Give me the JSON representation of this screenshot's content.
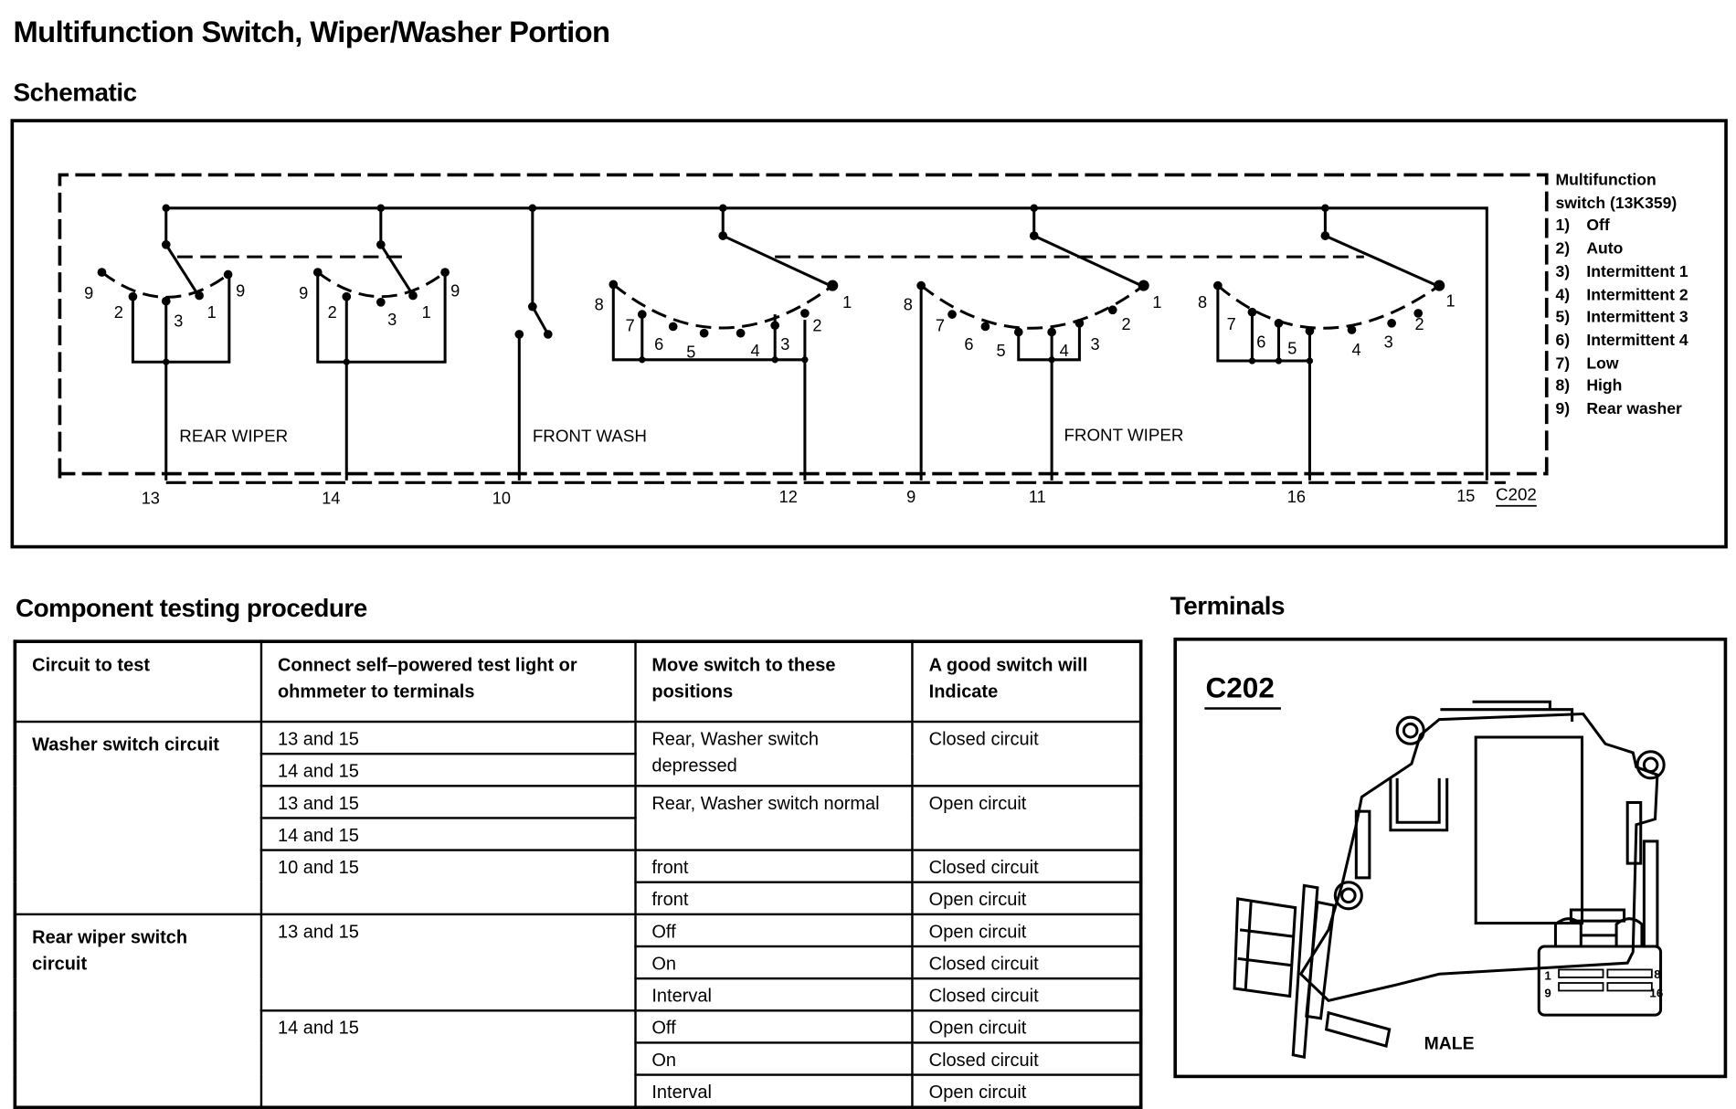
{
  "title": "Multifunction Switch, Wiper/Washer Portion",
  "schematic": {
    "heading": "Schematic",
    "section_labels": {
      "rear_wiper": "REAR WIPER",
      "front_wash": "FRONT WASH",
      "front_wiper": "FRONT WIPER"
    },
    "terminals": [
      "13",
      "14",
      "10",
      "12",
      "9",
      "11",
      "16",
      "15"
    ],
    "connector": "C202",
    "rear_switch_contacts": [
      "9",
      "2",
      "3",
      "1",
      "9"
    ],
    "front_switch_contacts": [
      "8",
      "7",
      "6",
      "5",
      "4",
      "3",
      "2",
      "1"
    ],
    "legend": {
      "title_line1": "Multifunction",
      "title_line2": "switch (13K359)",
      "items": [
        {
          "n": "1)",
          "label": "Off"
        },
        {
          "n": "2)",
          "label": "Auto"
        },
        {
          "n": "3)",
          "label": "Intermittent 1"
        },
        {
          "n": "4)",
          "label": "Intermittent 2"
        },
        {
          "n": "5)",
          "label": "Intermittent 3"
        },
        {
          "n": "6)",
          "label": "Intermittent 4"
        },
        {
          "n": "7)",
          "label": "Low"
        },
        {
          "n": "8)",
          "label": "High"
        },
        {
          "n": "9)",
          "label": "Rear washer"
        }
      ]
    }
  },
  "procedure": {
    "heading": "Component testing procedure",
    "headers": [
      "Circuit to test",
      "Connect self–powered test light or ohmmeter to terminals",
      "Move switch to these positions",
      "A good switch will Indicate"
    ],
    "circuits": [
      "Washer switch circuit",
      "Rear wiper switch circuit"
    ],
    "terminals": [
      "13 and 15",
      "14 and 15",
      "13 and 15",
      "14 and 15",
      "10 and 15",
      "13 and 15",
      "14 and 15"
    ],
    "positions": [
      "Rear, Washer switch depressed",
      "Rear, Washer switch normal",
      "front",
      "front",
      "Off",
      "On",
      "Interval",
      "Off",
      "On",
      "Interval"
    ],
    "results": [
      "Closed circuit",
      "Open circuit",
      "Closed circuit",
      "Open circuit",
      "Open circuit",
      "Closed circuit",
      "Closed circuit",
      "Open circuit",
      "Closed circuit",
      "Open circuit"
    ]
  },
  "terminals_view": {
    "heading": "Terminals",
    "connector": "C202",
    "pin_labels": [
      "1",
      "8",
      "9",
      "16"
    ],
    "gender": "MALE"
  }
}
